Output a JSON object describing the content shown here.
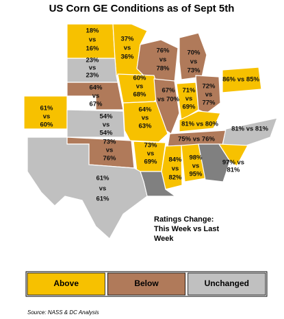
{
  "title": "US Corn GE Conditions as of Sept 5th",
  "states": [
    {
      "color": "#f7c100",
      "lines": [
        "18%",
        "vs",
        "16%"
      ]
    },
    {
      "color": "#f7c100",
      "lines": [
        "37%",
        "vs",
        "36%"
      ]
    },
    {
      "color": "#c0c0c0",
      "lines": [
        "23%",
        "vs",
        "23%"
      ]
    },
    {
      "color": "#b07a5a",
      "lines": [
        "76%",
        "vs",
        "78%"
      ]
    },
    {
      "color": "#b07a5a",
      "lines": [
        "70%",
        "vs",
        "73%"
      ]
    },
    {
      "color": "#b07a5a",
      "lines": [
        "64%",
        "vs",
        "67%"
      ]
    },
    {
      "color": "#f7c100",
      "lines": [
        "60%",
        "vs",
        "68%"
      ]
    },
    {
      "color": "#b07a5a",
      "lines": [
        "67%",
        "vs 70%"
      ]
    },
    {
      "color": "#f7c100",
      "lines": [
        "71%",
        "vs",
        "69%"
      ]
    },
    {
      "color": "#b07a5a",
      "lines": [
        "72%",
        "vs",
        "77%"
      ]
    },
    {
      "color": "#f7c100",
      "lines": [
        "86% vs 85%"
      ]
    },
    {
      "color": "#f7c100",
      "lines": [
        "61%",
        "vs",
        "60%"
      ]
    },
    {
      "color": "#c0c0c0",
      "lines": [
        "54%",
        "vs",
        "54%"
      ]
    },
    {
      "color": "#f7c100",
      "lines": [
        "64%",
        "vs",
        "63%"
      ]
    },
    {
      "color": "#f7c100",
      "lines": [
        "81% vs 80%"
      ]
    },
    {
      "color": "#b07a5a",
      "lines": [
        "75% vs 76%"
      ]
    },
    {
      "color": "#c0c0c0",
      "lines": [
        "81% vs 81%"
      ]
    },
    {
      "color": "#b07a5a",
      "lines": [
        "73%",
        "vs",
        "76%"
      ]
    },
    {
      "color": "#f7c100",
      "lines": [
        "73%",
        "vs",
        "69%"
      ]
    },
    {
      "color": "#f7c100",
      "lines": [
        "84%",
        "vs",
        "82%"
      ]
    },
    {
      "color": "#f7c100",
      "lines": [
        "98%",
        "vs",
        "95%"
      ]
    },
    {
      "color": "#808080"
    },
    {
      "color": "#f7c100",
      "lines": [
        "97% vs",
        "81%"
      ]
    },
    {
      "color": "#808080"
    },
    {
      "color": "#c0c0c0",
      "lines": [
        "61%",
        "vs",
        "61%"
      ]
    }
  ],
  "legend": {
    "title": [
      "Ratings Change:",
      "This Week vs Last",
      "Week"
    ],
    "items": [
      {
        "label": "Above",
        "color": "#f7c100"
      },
      {
        "label": "Below",
        "color": "#b07a5a"
      },
      {
        "label": "Unchanged",
        "color": "#c0c0c0"
      }
    ]
  },
  "source": "Source: NASS & DC Analysis"
}
